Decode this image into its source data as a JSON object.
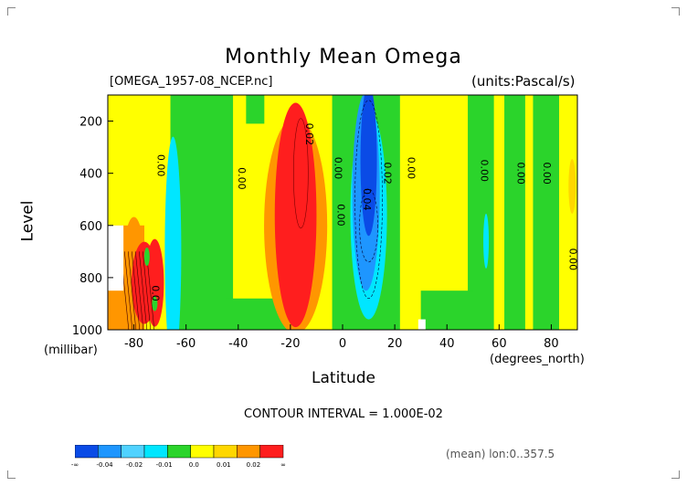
{
  "title": "Monthly Mean Omega",
  "file_label": "[OMEGA_1957-08_NCEP.nc]",
  "units_label": "(units:Pascal/s)",
  "ylabel": "Level",
  "yunit": "(millibar)",
  "xlabel": "Latitude",
  "xunit": "(degrees_north)",
  "contour_interval": "CONTOUR INTERVAL = 1.000E-02",
  "mean_note": "(mean) lon:0..357.5",
  "chart_data": {
    "type": "heatmap",
    "x_ticks": [
      "-80",
      "-60",
      "-40",
      "-20",
      "0",
      "20",
      "40",
      "60",
      "80"
    ],
    "x_tick_values": [
      -80,
      -60,
      -40,
      -20,
      0,
      20,
      40,
      60,
      80
    ],
    "xlim": [
      -90,
      90
    ],
    "y_ticks": [
      "200",
      "400",
      "600",
      "800",
      "1000"
    ],
    "y_tick_values": [
      200,
      400,
      600,
      800,
      1000
    ],
    "ylim": [
      1000,
      100
    ],
    "contour_labels": [
      {
        "text": "0.00",
        "lat": -71,
        "lev": 370
      },
      {
        "text": "0.00",
        "lat": -40,
        "lev": 420
      },
      {
        "text": "0.02",
        "lat": -14,
        "lev": 250
      },
      {
        "text": "0.00",
        "lat": -3,
        "lev": 380
      },
      {
        "text": "0.00",
        "lat": -2,
        "lev": 560
      },
      {
        "text": "0.04",
        "lat": 8,
        "lev": 500
      },
      {
        "text": "0.02",
        "lat": 16,
        "lev": 400
      },
      {
        "text": "0.00",
        "lat": 25,
        "lev": 380
      },
      {
        "text": "0.00",
        "lat": 53,
        "lev": 390
      },
      {
        "text": "0.00",
        "lat": 67,
        "lev": 400
      },
      {
        "text": "0.00",
        "lat": 77,
        "lev": 400
      },
      {
        "text": "0.00",
        "lat": 87,
        "lev": 730
      },
      {
        "text": "0.0",
        "lat": -73,
        "lev": 860
      }
    ],
    "colorbar": {
      "colors": [
        "#0a4be6",
        "#1e96ff",
        "#50d2ff",
        "#00e6ff",
        "#2bd42b",
        "#ffff00",
        "#ffd700",
        "#ff9600",
        "#ff1e1e"
      ],
      "labels": [
        "-∞",
        "-0.04",
        "-0.02",
        "-0.01",
        "0.0",
        "0.01",
        "0.02",
        "∞"
      ]
    },
    "grid": false,
    "legend": "colorbar-bottom-left"
  }
}
